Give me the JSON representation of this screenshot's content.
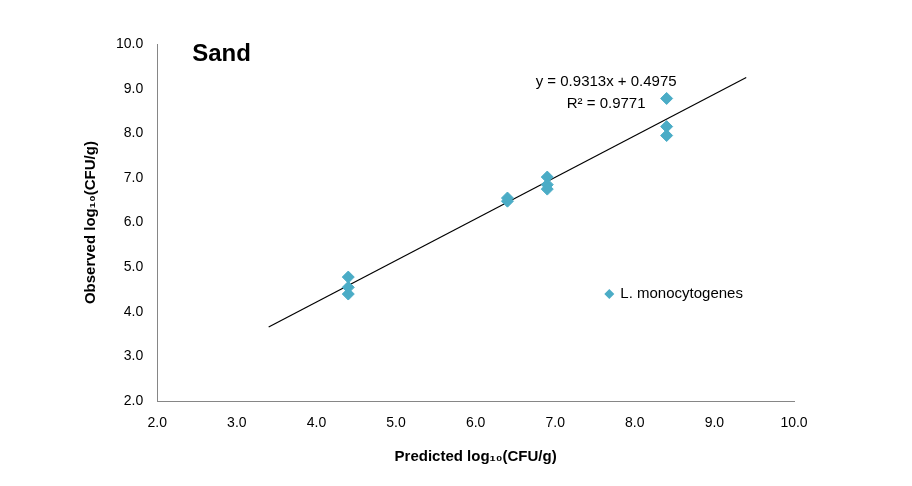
{
  "chart_data": {
    "type": "scatter",
    "title": "Sand",
    "x_label": "Predicted log₁₀(CFU/g)",
    "y_label": "Observed log₁₀(CFU/g)",
    "annotations": [
      "y = 0.9313x + 0.4975",
      "R² = 0.9771"
    ],
    "series": [
      {
        "name": "L. monocytogenes",
        "color": "#4bacc6",
        "marker": "diamond",
        "x": [
          4.4,
          4.4,
          4.4,
          6.4,
          6.4,
          6.9,
          6.9,
          6.9,
          8.4,
          8.4,
          8.4
        ],
        "values": [
          4.78,
          4.55,
          4.4,
          6.55,
          6.48,
          7.02,
          6.85,
          6.75,
          8.78,
          8.15,
          7.95
        ]
      },
      {
        "type": "line",
        "color": "#000000",
        "line_style": "solid",
        "marker": "none",
        "x": [
          3.4,
          9.4
        ],
        "values": [
          3.66,
          9.25
        ]
      }
    ],
    "xlim": [
      2,
      10
    ],
    "ylim": [
      2,
      10
    ],
    "xticks": [
      {
        "value": 2,
        "label": "2.0"
      },
      {
        "value": 3,
        "label": "3.0"
      },
      {
        "value": 4,
        "label": "4.0"
      },
      {
        "value": 5,
        "label": "5.0"
      },
      {
        "value": 6,
        "label": "6.0"
      },
      {
        "value": 7,
        "label": "7.0"
      },
      {
        "value": 8,
        "label": "8.0"
      },
      {
        "value": 9,
        "label": "9.0"
      },
      {
        "value": 10,
        "label": "10.0"
      }
    ],
    "yticks": [
      {
        "value": 2,
        "label": "2.0"
      },
      {
        "value": 3,
        "label": "3.0"
      },
      {
        "value": 4,
        "label": "4.0"
      },
      {
        "value": 5,
        "label": "5.0"
      },
      {
        "value": 6,
        "label": "6.0"
      },
      {
        "value": 7,
        "label": "7.0"
      },
      {
        "value": 8,
        "label": "8.0"
      },
      {
        "value": 9,
        "label": "9.0"
      },
      {
        "value": 10,
        "label": "10.0"
      }
    ],
    "grid": false,
    "legend": "lower right"
  }
}
